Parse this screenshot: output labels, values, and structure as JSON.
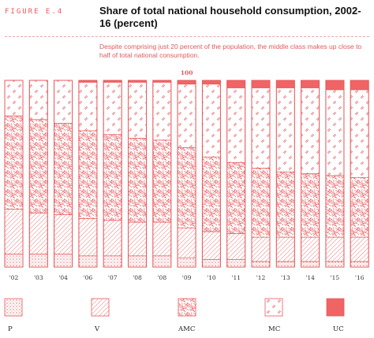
{
  "figure_label": "FIGURE E.4",
  "colors": {
    "accent": "#e8595c",
    "bar_border": "#e8595c",
    "subtitle": "#e05a5c",
    "uc_fill": "#f06466"
  },
  "chart_data": {
    "type": "bar",
    "stacked": true,
    "title": "Share of total national household consumption, 2002-16 (percent)",
    "subtitle": "Despite comprising just 20 percent of the population, the middle class makes up close to half of total national consumption.",
    "categories": [
      "'02",
      "'03",
      "'04",
      "'06",
      "'07",
      "'08",
      "'08",
      "'09",
      "'10",
      "'11",
      "'12",
      "'13",
      "'14",
      "'15",
      "'16"
    ],
    "ylim": [
      0,
      100
    ],
    "annotations": [
      {
        "text": "100",
        "category_index": 7
      }
    ],
    "legend_position": "bottom",
    "series": [
      {
        "name": "P",
        "pattern": "dots",
        "values": [
          7,
          7,
          7,
          6,
          6,
          6,
          6,
          5,
          4,
          4,
          3,
          3,
          3,
          3,
          3
        ]
      },
      {
        "name": "V",
        "pattern": "hatch",
        "values": [
          24,
          22,
          21,
          20,
          19,
          18,
          18,
          16,
          15,
          14,
          13,
          13,
          13,
          13,
          13
        ]
      },
      {
        "name": "AMC",
        "pattern": "scribble",
        "values": [
          50,
          50,
          49,
          47,
          46,
          45,
          44,
          43,
          40,
          38,
          37,
          35,
          34,
          33,
          32
        ]
      },
      {
        "name": "MC",
        "pattern": "sparse-dashes",
        "values": [
          19,
          21,
          23,
          26,
          28,
          30,
          31,
          34,
          39,
          40,
          43,
          45,
          46,
          46,
          47
        ]
      },
      {
        "name": "UC",
        "pattern": "solid",
        "values": [
          0,
          0,
          0,
          1,
          1,
          1,
          1,
          2,
          2,
          4,
          4,
          4,
          4,
          5,
          5
        ]
      }
    ]
  }
}
